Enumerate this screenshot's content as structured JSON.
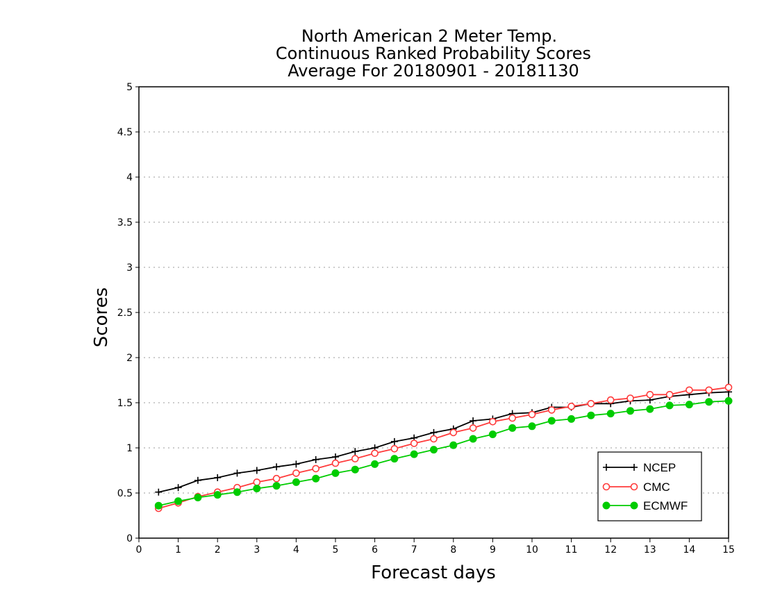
{
  "chart_data": {
    "type": "line",
    "title_lines": [
      "North American 2 Meter Temp.",
      "Continuous Ranked Probability Scores",
      "Average For 20180901 - 20181130"
    ],
    "xlabel": "Forecast days",
    "ylabel": "Scores",
    "xlim": [
      0,
      15
    ],
    "ylim": [
      0,
      5
    ],
    "x_ticks": [
      "0",
      "1",
      "2",
      "3",
      "4",
      "5",
      "6",
      "7",
      "8",
      "9",
      "10",
      "11",
      "12",
      "13",
      "14",
      "15"
    ],
    "y_ticks": [
      "0",
      "0.5",
      "1",
      "1.5",
      "2",
      "2.5",
      "3",
      "3.5",
      "4",
      "4.5",
      "5"
    ],
    "grid": "horizontal dotted",
    "legend_position": "bottom-right",
    "x": [
      0.5,
      1,
      1.5,
      2,
      2.5,
      3,
      3.5,
      4,
      4.5,
      5,
      5.5,
      6,
      6.5,
      7,
      7.5,
      8,
      8.5,
      9,
      9.5,
      10,
      10.5,
      11,
      11.5,
      12,
      12.5,
      13,
      13.5,
      14,
      14.5,
      15
    ],
    "series": [
      {
        "name": "NCEP",
        "color": "#000000",
        "marker": "plus",
        "values": [
          0.51,
          0.56,
          0.64,
          0.67,
          0.72,
          0.75,
          0.79,
          0.82,
          0.87,
          0.9,
          0.96,
          1.0,
          1.07,
          1.11,
          1.17,
          1.21,
          1.3,
          1.32,
          1.38,
          1.39,
          1.45,
          1.45,
          1.49,
          1.49,
          1.52,
          1.53,
          1.57,
          1.59,
          1.61,
          1.62
        ]
      },
      {
        "name": "CMC",
        "color": "#ff3b3b",
        "marker": "open-circle",
        "values": [
          0.33,
          0.39,
          0.46,
          0.51,
          0.56,
          0.62,
          0.66,
          0.72,
          0.77,
          0.83,
          0.88,
          0.94,
          0.99,
          1.05,
          1.1,
          1.17,
          1.22,
          1.29,
          1.33,
          1.37,
          1.42,
          1.46,
          1.49,
          1.53,
          1.55,
          1.59,
          1.59,
          1.64,
          1.64,
          1.67
        ]
      },
      {
        "name": "ECMWF",
        "color": "#00cc00",
        "marker": "filled-circle",
        "values": [
          0.36,
          0.41,
          0.45,
          0.48,
          0.51,
          0.55,
          0.58,
          0.62,
          0.66,
          0.72,
          0.76,
          0.82,
          0.88,
          0.93,
          0.98,
          1.03,
          1.1,
          1.15,
          1.22,
          1.24,
          1.3,
          1.32,
          1.36,
          1.38,
          1.41,
          1.43,
          1.47,
          1.48,
          1.51,
          1.52
        ]
      }
    ]
  }
}
